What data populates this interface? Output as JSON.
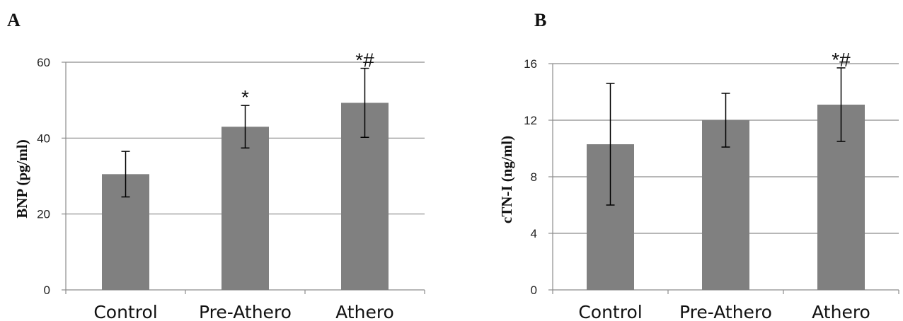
{
  "chart_data": [
    {
      "panel": "A",
      "type": "bar",
      "categories": [
        "Control",
        "Pre-Athero",
        "Athero"
      ],
      "values": [
        30.5,
        43,
        49.3
      ],
      "errors": [
        6,
        5.6,
        9.1
      ],
      "annotations": [
        "",
        "*",
        "*#"
      ],
      "ylabel": "BNP (pg/ml)",
      "ylim": [
        0,
        60
      ],
      "yticks": [
        0,
        20,
        40,
        60
      ],
      "grid": true,
      "bar_color": "#808080"
    },
    {
      "panel": "B",
      "type": "bar",
      "categories": [
        "Control",
        "Pre-Athero",
        "Athero"
      ],
      "values": [
        10.3,
        12,
        13.1
      ],
      "errors": [
        4.3,
        1.9,
        2.6
      ],
      "annotations": [
        "",
        "",
        "*#"
      ],
      "ylabel": "cTN-I (ng/ml)",
      "ylim": [
        0,
        16
      ],
      "yticks": [
        0,
        4,
        8,
        12,
        16
      ],
      "grid": true,
      "bar_color": "#808080"
    }
  ]
}
